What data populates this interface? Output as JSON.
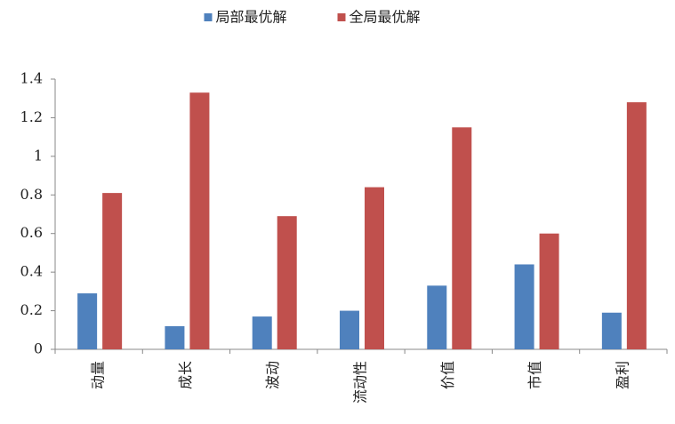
{
  "chart_data": {
    "type": "bar",
    "categories": [
      "动量",
      "成长",
      "波动",
      "流动性",
      "价值",
      "市值",
      "盈利"
    ],
    "series": [
      {
        "name": "局部最优解",
        "color": "#4f81bd",
        "values": [
          0.29,
          0.12,
          0.17,
          0.2,
          0.33,
          0.44,
          0.19
        ]
      },
      {
        "name": "全局最优解",
        "color": "#c0504d",
        "values": [
          0.81,
          1.33,
          0.69,
          0.84,
          1.15,
          0.6,
          1.28
        ]
      }
    ],
    "ylim": [
      0,
      1.4
    ],
    "yticks": [
      0,
      0.2,
      0.4,
      0.6,
      0.8,
      1,
      1.2,
      1.4
    ],
    "grid": false,
    "legend": "top"
  }
}
